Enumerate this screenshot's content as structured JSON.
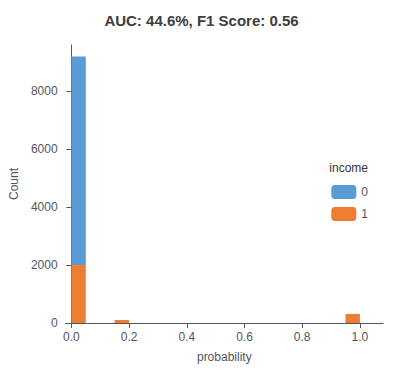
{
  "chart_data": {
    "type": "histogram",
    "title": "AUC: 44.6%, F1 Score: 0.56",
    "xlabel": "probability",
    "ylabel": "Count",
    "bins": [
      0.0,
      0.05,
      0.1,
      0.15,
      0.2,
      0.25,
      0.3,
      0.35,
      0.4,
      0.45,
      0.5,
      0.55,
      0.6,
      0.65,
      0.7,
      0.75,
      0.8,
      0.85,
      0.9,
      0.95,
      1.0
    ],
    "series": [
      {
        "name": "0",
        "color": "#5B9BD5",
        "values": [
          7200,
          0,
          0,
          0,
          0,
          0,
          0,
          0,
          0,
          0,
          0,
          0,
          0,
          0,
          0,
          0,
          0,
          0,
          0,
          0
        ]
      },
      {
        "name": "1",
        "color": "#ED7D31",
        "values": [
          2000,
          0,
          0,
          100,
          0,
          0,
          0,
          0,
          0,
          0,
          0,
          0,
          0,
          0,
          0,
          0,
          0,
          0,
          0,
          310
        ]
      }
    ],
    "legend_title": "income",
    "legend": "right",
    "stacked": true,
    "grid": false,
    "xlim": [
      -0.02,
      1.08
    ],
    "xticks": [
      {
        "value": 0.0,
        "label": "0.0"
      },
      0.2,
      0.4,
      0.6,
      0.8,
      {
        "value": 1.0,
        "label": "1.0"
      }
    ],
    "ylim": [
      0,
      9600
    ],
    "yticks": [
      0,
      2000,
      4000,
      6000,
      8000
    ]
  }
}
